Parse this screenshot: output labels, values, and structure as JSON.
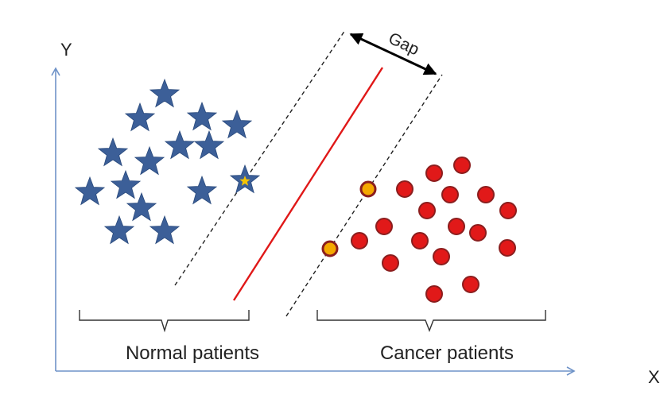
{
  "diagram": {
    "title": "",
    "axes": {
      "x_label": "X",
      "y_label": "Y",
      "color": "#6f93c8"
    },
    "gap_label": "Gap",
    "groups": [
      {
        "label": "Normal patients",
        "marker": "star",
        "color": "#3c5f98"
      },
      {
        "label": "Cancer patients",
        "marker": "circle",
        "color": "#e11919"
      }
    ],
    "separator": {
      "role": "decision boundary",
      "color": "#e01818"
    },
    "margin_lines": {
      "style": "dashed",
      "color": "#222222"
    },
    "support_vector": {
      "fill": "#f5a800",
      "ring": "#8b1e1e",
      "star_center": "#f5c400"
    }
  }
}
